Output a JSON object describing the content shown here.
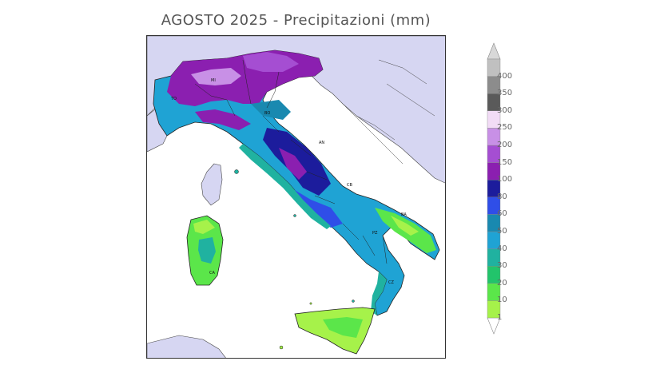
{
  "title": "AGOSTO 2025 - Precipitazioni (mm)",
  "legend": {
    "unit": "mm",
    "levels": [
      {
        "value": "1",
        "color": "#a6f24a"
      },
      {
        "value": "10",
        "color": "#5be64a"
      },
      {
        "value": "20",
        "color": "#22c46b"
      },
      {
        "value": "30",
        "color": "#20b2a0"
      },
      {
        "value": "40",
        "color": "#1fa3d4"
      },
      {
        "value": "50",
        "color": "#1989b0"
      },
      {
        "value": "60",
        "color": "#2f4ee8"
      },
      {
        "value": "80",
        "color": "#1c1c9c"
      },
      {
        "value": "100",
        "color": "#8b1fb0"
      },
      {
        "value": "150",
        "color": "#a54ed2"
      },
      {
        "value": "200",
        "color": "#c890e6"
      },
      {
        "value": "250",
        "color": "#f2dcf6"
      },
      {
        "value": "300",
        "color": "#5a5a5a"
      },
      {
        "value": "350",
        "color": "#8c8c8c"
      },
      {
        "value": "400",
        "color": "#c0c0c0"
      }
    ]
  },
  "map": {
    "sea_color": "#ffffff",
    "foreign_land_color": "#d6d6f2",
    "city_labels": [
      "TO",
      "MI",
      "BO",
      "AN",
      "BA",
      "CA",
      "PZ",
      "CZ",
      "CB"
    ]
  }
}
